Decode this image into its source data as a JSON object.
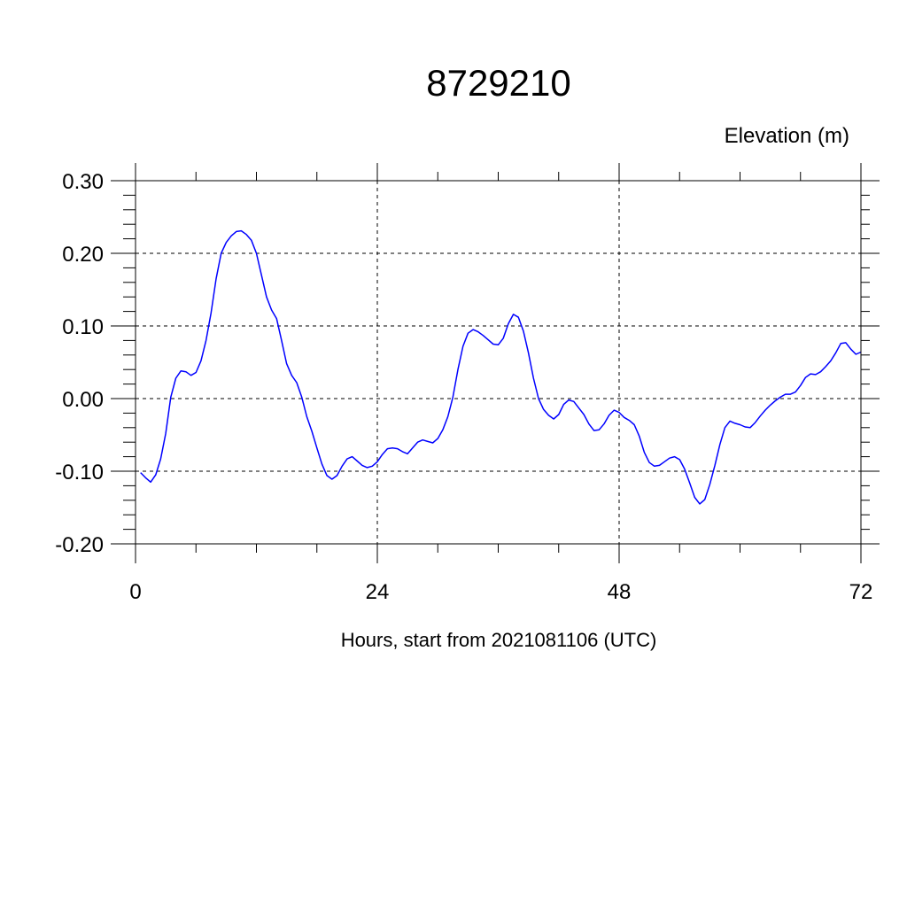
{
  "chart_data": {
    "type": "line",
    "title": "8729210",
    "ylabel": "Elevation (m)",
    "xlabel": "Hours, start from 2021081106 (UTC)",
    "xlim": [
      0,
      72
    ],
    "ylim": [
      -0.2,
      0.3
    ],
    "x_ticks": [
      0,
      24,
      48,
      72
    ],
    "x_tick_labels": [
      "0",
      "24",
      "48",
      "72"
    ],
    "y_ticks": [
      0.3,
      0.2,
      0.1,
      0.0,
      -0.1,
      -0.2
    ],
    "y_tick_labels": [
      "0.30",
      "0.20",
      "0.10",
      "0.00",
      "-0.10",
      "-0.20"
    ],
    "grid": true,
    "line_color": "#0000ff",
    "series": [
      {
        "x": [
          0.5,
          1.0,
          1.5,
          2.0,
          2.5,
          3.0,
          3.5,
          4.0,
          4.5,
          5.0,
          5.5,
          6.0,
          6.5,
          7.0,
          7.5,
          8.0,
          8.5,
          9.0,
          9.5,
          10.0,
          10.5,
          11.0,
          11.5,
          12.0,
          12.5,
          13.0,
          13.5,
          14.0,
          14.5,
          15.0,
          15.5,
          16.0,
          16.5,
          17.0,
          17.5,
          18.0,
          18.5,
          19.0,
          19.5,
          20.0,
          20.5,
          21.0,
          21.5,
          22.0,
          22.5,
          23.0,
          23.5,
          24.0,
          24.5,
          25.0,
          25.5,
          26.0,
          26.5,
          27.0,
          27.5,
          28.0,
          28.5,
          29.0,
          29.5,
          30.0,
          30.5,
          31.0,
          31.5,
          32.0,
          32.5,
          33.0,
          33.5,
          34.0,
          34.5,
          35.0,
          35.5,
          36.0,
          36.5,
          37.0,
          37.5,
          38.0,
          38.5,
          39.0,
          39.5,
          40.0,
          40.5,
          41.0,
          41.5,
          42.0,
          42.5,
          43.0,
          43.5,
          44.0,
          44.5,
          45.0,
          45.5,
          46.0,
          46.5,
          47.0,
          47.5,
          48.0,
          48.5,
          49.0,
          49.5,
          50.0,
          50.5,
          51.0,
          51.5,
          52.0,
          52.5,
          53.0,
          53.5,
          54.0,
          54.5,
          55.0,
          55.5,
          56.0,
          56.5,
          57.0,
          57.5,
          58.0,
          58.5,
          59.0,
          59.5,
          60.0,
          60.5,
          61.0,
          61.5,
          62.0,
          62.5,
          63.0,
          63.5,
          64.0,
          64.5,
          65.0,
          65.5,
          66.0,
          66.5,
          67.0,
          67.5,
          68.0,
          68.5,
          69.0,
          69.5,
          70.0,
          70.5,
          71.0,
          71.5,
          72.0
        ],
        "y": [
          -0.102,
          -0.109,
          -0.115,
          -0.105,
          -0.083,
          -0.048,
          0.002,
          0.028,
          0.038,
          0.037,
          0.032,
          0.036,
          0.052,
          0.08,
          0.118,
          0.165,
          0.2,
          0.215,
          0.224,
          0.23,
          0.231,
          0.226,
          0.218,
          0.2,
          0.17,
          0.14,
          0.122,
          0.11,
          0.08,
          0.048,
          0.032,
          0.022,
          0.002,
          -0.025,
          -0.045,
          -0.068,
          -0.09,
          -0.106,
          -0.111,
          -0.106,
          -0.093,
          -0.083,
          -0.08,
          -0.086,
          -0.092,
          -0.095,
          -0.093,
          -0.087,
          -0.077,
          -0.069,
          -0.068,
          -0.069,
          -0.073,
          -0.076,
          -0.068,
          -0.06,
          -0.057,
          -0.059,
          -0.061,
          -0.055,
          -0.043,
          -0.025,
          0.002,
          0.04,
          0.072,
          0.09,
          0.095,
          0.092,
          0.087,
          0.081,
          0.075,
          0.074,
          0.083,
          0.103,
          0.116,
          0.112,
          0.093,
          0.063,
          0.028,
          0.0,
          -0.015,
          -0.023,
          -0.028,
          -0.022,
          -0.008,
          -0.002,
          -0.004,
          -0.013,
          -0.022,
          -0.035,
          -0.044,
          -0.043,
          -0.035,
          -0.023,
          -0.016,
          -0.019,
          -0.026,
          -0.03,
          -0.036,
          -0.052,
          -0.074,
          -0.088,
          -0.093,
          -0.092,
          -0.087,
          -0.082,
          -0.08,
          -0.084,
          -0.097,
          -0.116,
          -0.136,
          -0.145,
          -0.139,
          -0.118,
          -0.092,
          -0.063,
          -0.04,
          -0.031,
          -0.034,
          -0.036,
          -0.039,
          -0.04,
          -0.033,
          -0.024,
          -0.016,
          -0.009,
          -0.003,
          0.002,
          0.006,
          0.006,
          0.009,
          0.018,
          0.029,
          0.034,
          0.033,
          0.037,
          0.044,
          0.052,
          0.063,
          0.076,
          0.077,
          0.068,
          0.061,
          0.064
        ]
      }
    ]
  }
}
